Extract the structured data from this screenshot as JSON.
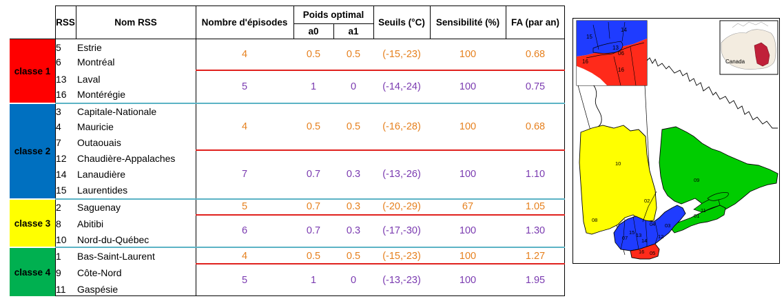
{
  "headers": {
    "rss": "RSS",
    "nom_rss": "Nom RSS",
    "nombre_episodes": "Nombre d'épisodes",
    "poids_optimal": "Poids optimal",
    "a0": "a0",
    "a1": "a1",
    "seuils": "Seuils (°C)",
    "sensibilite": "Sensibilité (%)",
    "fa": "FA (par an)"
  },
  "classes": [
    {
      "label": "classe 1",
      "color": "#ff0000"
    },
    {
      "label": "classe 2",
      "color": "#0070c0"
    },
    {
      "label": "classe 3",
      "color": "#ffff00"
    },
    {
      "label": "classe 4",
      "color": "#00b050"
    }
  ],
  "rss_rows": [
    {
      "num": "5",
      "name": "Estrie"
    },
    {
      "num": "6",
      "name": "Montréal"
    },
    {
      "num": "13",
      "name": "Laval"
    },
    {
      "num": "16",
      "name": "Montérégie"
    },
    {
      "num": "3",
      "name": "Capitale-Nationale"
    },
    {
      "num": "4",
      "name": "Mauricie"
    },
    {
      "num": "7",
      "name": "Outaouais"
    },
    {
      "num": "12",
      "name": "Chaudière-Appalaches"
    },
    {
      "num": "14",
      "name": "Lanaudière"
    },
    {
      "num": "15",
      "name": "Laurentides"
    },
    {
      "num": "2",
      "name": "Saguenay"
    },
    {
      "num": "8",
      "name": "Abitibi"
    },
    {
      "num": "10",
      "name": "Nord-du-Québec"
    },
    {
      "num": "1",
      "name": "Bas-Saint-Laurent"
    },
    {
      "num": "9",
      "name": "Côte-Nord"
    },
    {
      "num": "11",
      "name": "Gaspésie"
    }
  ],
  "groups": [
    {
      "episodes": "4",
      "a0": "0.5",
      "a1": "0.5",
      "seuils": "(-15,-23)",
      "sens": "100",
      "fa": "0.68"
    },
    {
      "episodes": "5",
      "a0": "1",
      "a1": "0",
      "seuils": "(-14,-24)",
      "sens": "100",
      "fa": "0.75"
    },
    {
      "episodes": "4",
      "a0": "0.5",
      "a1": "0.5",
      "seuils": "(-16,-28)",
      "sens": "100",
      "fa": "0.68"
    },
    {
      "episodes": "7",
      "a0": "0.7",
      "a1": "0.3",
      "seuils": "(-13,-26)",
      "sens": "100",
      "fa": "1.10"
    },
    {
      "episodes": "5",
      "a0": "0.7",
      "a1": "0.3",
      "seuils": "(-20,-29)",
      "sens": "67",
      "fa": "1.05"
    },
    {
      "episodes": "6",
      "a0": "0.7",
      "a1": "0.3",
      "seuils": "(-17,-30)",
      "sens": "100",
      "fa": "1.30"
    },
    {
      "episodes": "4",
      "a0": "0.5",
      "a1": "0.5",
      "seuils": "(-15,-23)",
      "sens": "100",
      "fa": "1.27"
    },
    {
      "episodes": "5",
      "a0": "1",
      "a1": "0",
      "seuils": "(-13,-23)",
      "sens": "100",
      "fa": "1.95"
    }
  ],
  "value_colors": {
    "orange": "#e6801e",
    "purple": "#7a3ab0"
  },
  "map": {
    "inset_label": "Canada",
    "region_labels": [
      "01",
      "02",
      "03",
      "04",
      "05",
      "07",
      "08",
      "09",
      "10",
      "11",
      "12",
      "13",
      "14",
      "15",
      "16"
    ],
    "zoom_labels": [
      "14",
      "15",
      "13",
      "06",
      "16",
      "16"
    ]
  }
}
